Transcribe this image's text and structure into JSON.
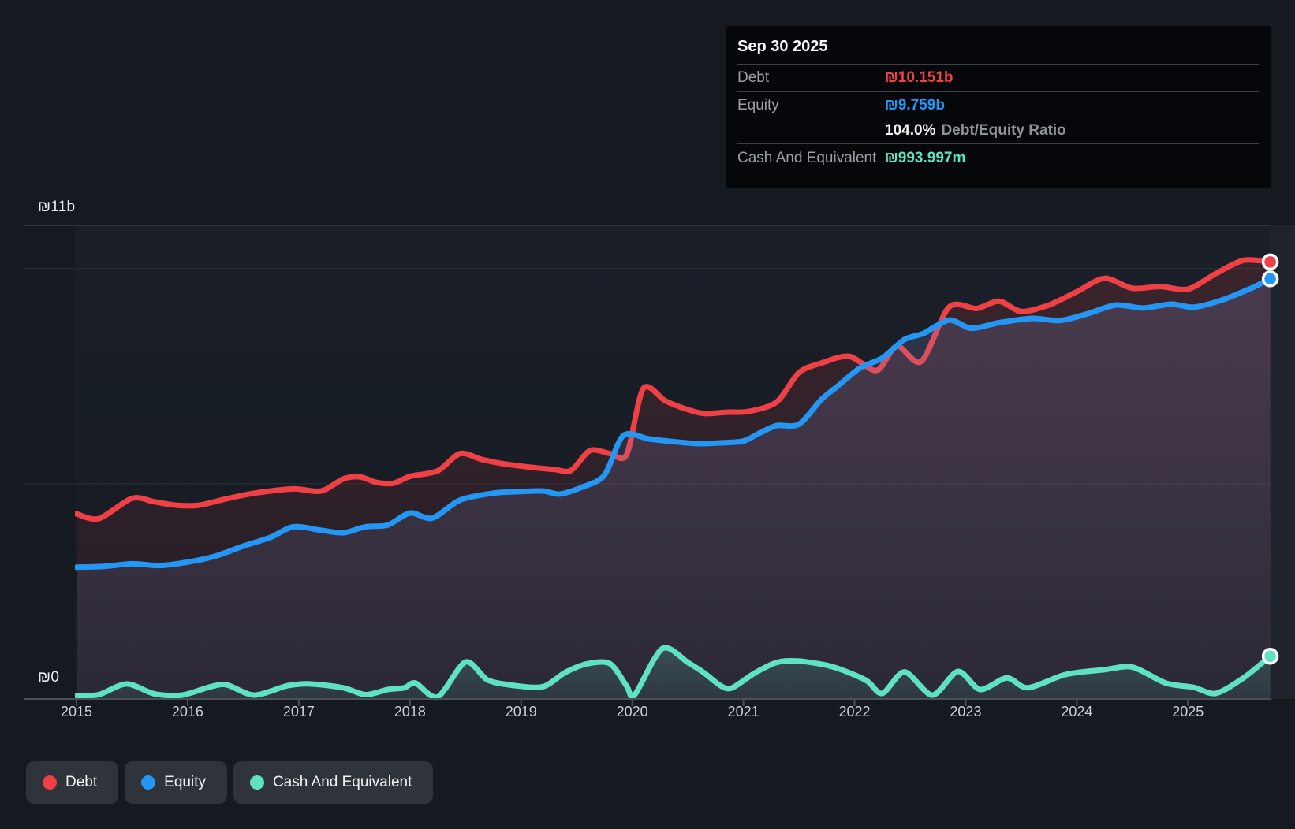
{
  "tooltip": {
    "date": "Sep 30 2025",
    "debt_label": "Debt",
    "debt_value": "₪10.151b",
    "equity_label": "Equity",
    "equity_value": "₪9.759b",
    "ratio_value": "104.0%",
    "ratio_label": "Debt/Equity Ratio",
    "cash_label": "Cash And Equivalent",
    "cash_value": "₪993.997m"
  },
  "y_axis": {
    "top_label": "₪11b",
    "zero_label": "₪0"
  },
  "x_axis": {
    "years": [
      2015,
      2016,
      2017,
      2018,
      2019,
      2020,
      2021,
      2022,
      2023,
      2024,
      2025
    ]
  },
  "legend": {
    "items": [
      {
        "label": "Debt",
        "series": "Debt"
      },
      {
        "label": "Equity",
        "series": "Equity"
      },
      {
        "label": "Cash And Equivalent",
        "series": "Cash And Equivalent"
      }
    ]
  },
  "colors": {
    "debt": "#ef4045",
    "equity": "#2397f3",
    "cash": "#5fe2c1",
    "grid_major": "#363c44",
    "grid_minor": "#272d35",
    "axis_line": "#4b5058",
    "tick": "#4b5058",
    "plot_bg_top": "#1a1f28",
    "plot_bg_bottom": "#161b23",
    "right_strip": "#1f242c"
  },
  "chart_data": {
    "type": "area",
    "title": "Debt to Equity History",
    "unit": "billions ILS (₪)",
    "x_range": [
      2015.0,
      2025.74
    ],
    "ylim": [
      0,
      11
    ],
    "gridline_values": [
      5,
      10,
      11
    ],
    "y_tick_labels": {
      "0": "₪0",
      "11": "₪11b"
    },
    "legend_position": "bottom-left",
    "latest": {
      "date": "Sep 30 2025",
      "debt_b": 10.151,
      "equity_b": 9.759,
      "cash_b": 0.994,
      "debt_equity_ratio_pct": 104.0
    },
    "series": [
      {
        "name": "Debt",
        "color": "#ef4045",
        "points": [
          [
            2015.0,
            4.3
          ],
          [
            2015.2,
            4.19
          ],
          [
            2015.5,
            4.66
          ],
          [
            2015.7,
            4.58
          ],
          [
            2015.9,
            4.5
          ],
          [
            2016.1,
            4.5
          ],
          [
            2016.35,
            4.65
          ],
          [
            2016.6,
            4.78
          ],
          [
            2016.95,
            4.88
          ],
          [
            2017.2,
            4.83
          ],
          [
            2017.4,
            5.11
          ],
          [
            2017.55,
            5.16
          ],
          [
            2017.7,
            5.03
          ],
          [
            2017.85,
            5.01
          ],
          [
            2018.0,
            5.17
          ],
          [
            2018.25,
            5.3
          ],
          [
            2018.45,
            5.7
          ],
          [
            2018.65,
            5.56
          ],
          [
            2018.85,
            5.46
          ],
          [
            2019.1,
            5.38
          ],
          [
            2019.3,
            5.33
          ],
          [
            2019.45,
            5.31
          ],
          [
            2019.62,
            5.77
          ],
          [
            2019.8,
            5.7
          ],
          [
            2019.95,
            5.68
          ],
          [
            2020.1,
            7.21
          ],
          [
            2020.3,
            6.92
          ],
          [
            2020.5,
            6.72
          ],
          [
            2020.65,
            6.63
          ],
          [
            2020.85,
            6.66
          ],
          [
            2021.05,
            6.68
          ],
          [
            2021.3,
            6.9
          ],
          [
            2021.5,
            7.58
          ],
          [
            2021.7,
            7.8
          ],
          [
            2021.95,
            7.96
          ],
          [
            2022.2,
            7.63
          ],
          [
            2022.38,
            8.2
          ],
          [
            2022.6,
            7.84
          ],
          [
            2022.85,
            9.1
          ],
          [
            2023.1,
            9.07
          ],
          [
            2023.3,
            9.24
          ],
          [
            2023.5,
            9.0
          ],
          [
            2023.75,
            9.15
          ],
          [
            2024.0,
            9.46
          ],
          [
            2024.25,
            9.77
          ],
          [
            2024.5,
            9.54
          ],
          [
            2024.75,
            9.58
          ],
          [
            2025.0,
            9.52
          ],
          [
            2025.25,
            9.88
          ],
          [
            2025.5,
            10.19
          ],
          [
            2025.74,
            10.151
          ]
        ]
      },
      {
        "name": "Equity",
        "color": "#2397f3",
        "points": [
          [
            2015.0,
            3.06
          ],
          [
            2015.25,
            3.08
          ],
          [
            2015.5,
            3.14
          ],
          [
            2015.75,
            3.1
          ],
          [
            2016.0,
            3.18
          ],
          [
            2016.25,
            3.32
          ],
          [
            2016.5,
            3.55
          ],
          [
            2016.75,
            3.76
          ],
          [
            2016.95,
            4.0
          ],
          [
            2017.2,
            3.92
          ],
          [
            2017.4,
            3.86
          ],
          [
            2017.6,
            4.0
          ],
          [
            2017.8,
            4.04
          ],
          [
            2018.0,
            4.32
          ],
          [
            2018.2,
            4.2
          ],
          [
            2018.45,
            4.62
          ],
          [
            2018.75,
            4.78
          ],
          [
            2019.0,
            4.82
          ],
          [
            2019.2,
            4.83
          ],
          [
            2019.35,
            4.76
          ],
          [
            2019.55,
            4.92
          ],
          [
            2019.75,
            5.2
          ],
          [
            2019.92,
            6.12
          ],
          [
            2020.15,
            6.04
          ],
          [
            2020.4,
            5.97
          ],
          [
            2020.6,
            5.93
          ],
          [
            2020.8,
            5.95
          ],
          [
            2021.0,
            5.99
          ],
          [
            2021.15,
            6.18
          ],
          [
            2021.3,
            6.35
          ],
          [
            2021.5,
            6.38
          ],
          [
            2021.7,
            6.95
          ],
          [
            2021.85,
            7.27
          ],
          [
            2022.05,
            7.69
          ],
          [
            2022.25,
            7.92
          ],
          [
            2022.45,
            8.35
          ],
          [
            2022.62,
            8.49
          ],
          [
            2022.85,
            8.8
          ],
          [
            2023.05,
            8.61
          ],
          [
            2023.3,
            8.74
          ],
          [
            2023.6,
            8.84
          ],
          [
            2023.85,
            8.79
          ],
          [
            2024.1,
            8.95
          ],
          [
            2024.35,
            9.15
          ],
          [
            2024.6,
            9.08
          ],
          [
            2024.85,
            9.17
          ],
          [
            2025.05,
            9.1
          ],
          [
            2025.3,
            9.26
          ],
          [
            2025.55,
            9.52
          ],
          [
            2025.74,
            9.759
          ]
        ]
      },
      {
        "name": "Cash And Equivalent",
        "color": "#5fe2c1",
        "points": [
          [
            2015.0,
            0.08
          ],
          [
            2015.2,
            0.1
          ],
          [
            2015.45,
            0.35
          ],
          [
            2015.7,
            0.12
          ],
          [
            2015.95,
            0.09
          ],
          [
            2016.2,
            0.28
          ],
          [
            2016.35,
            0.33
          ],
          [
            2016.6,
            0.09
          ],
          [
            2016.9,
            0.31
          ],
          [
            2017.1,
            0.35
          ],
          [
            2017.4,
            0.26
          ],
          [
            2017.6,
            0.1
          ],
          [
            2017.8,
            0.22
          ],
          [
            2017.95,
            0.26
          ],
          [
            2018.05,
            0.37
          ],
          [
            2018.25,
            0.05
          ],
          [
            2018.5,
            0.86
          ],
          [
            2018.7,
            0.44
          ],
          [
            2018.95,
            0.31
          ],
          [
            2019.2,
            0.29
          ],
          [
            2019.4,
            0.62
          ],
          [
            2019.6,
            0.82
          ],
          [
            2019.8,
            0.82
          ],
          [
            2019.95,
            0.3
          ],
          [
            2020.02,
            0.09
          ],
          [
            2020.27,
            1.17
          ],
          [
            2020.5,
            0.85
          ],
          [
            2020.65,
            0.6
          ],
          [
            2020.8,
            0.3
          ],
          [
            2020.9,
            0.26
          ],
          [
            2021.1,
            0.6
          ],
          [
            2021.3,
            0.85
          ],
          [
            2021.5,
            0.88
          ],
          [
            2021.8,
            0.75
          ],
          [
            2022.1,
            0.44
          ],
          [
            2022.25,
            0.13
          ],
          [
            2022.45,
            0.63
          ],
          [
            2022.7,
            0.09
          ],
          [
            2022.93,
            0.64
          ],
          [
            2023.13,
            0.22
          ],
          [
            2023.37,
            0.49
          ],
          [
            2023.56,
            0.26
          ],
          [
            2023.9,
            0.57
          ],
          [
            2024.25,
            0.68
          ],
          [
            2024.5,
            0.74
          ],
          [
            2024.8,
            0.37
          ],
          [
            2025.05,
            0.27
          ],
          [
            2025.25,
            0.13
          ],
          [
            2025.5,
            0.49
          ],
          [
            2025.74,
            0.994
          ]
        ]
      }
    ]
  }
}
